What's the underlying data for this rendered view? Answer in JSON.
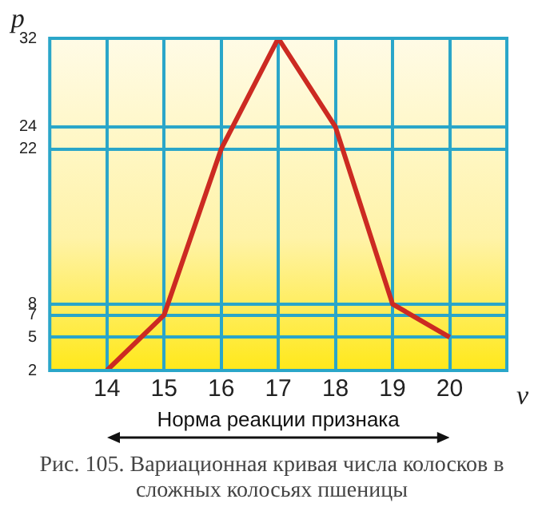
{
  "chart_data": {
    "type": "line",
    "xlabel": "v",
    "ylabel": "p",
    "x": [
      14,
      15,
      16,
      17,
      18,
      19,
      20
    ],
    "series": [
      {
        "color": "#cc2a22",
        "values": [
          2,
          7,
          22,
          32,
          24,
          8,
          5
        ]
      }
    ],
    "xlim": [
      13,
      21
    ],
    "xticks": [
      14,
      15,
      16,
      17,
      18,
      19,
      20
    ],
    "ylim": [
      2,
      32
    ],
    "yticks": [
      2,
      5,
      7,
      8,
      22,
      24,
      32
    ],
    "grid": true,
    "legend": false,
    "annotations": [
      "Норма реакции признака",
      "Рис. 105. Вариационная кривая числа колосков в сложных колосьях пшеницы"
    ]
  }
}
